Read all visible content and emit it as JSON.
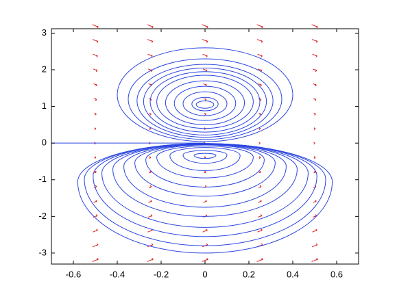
{
  "chart_data": {
    "type": "contour-quiver",
    "xlim": [
      -0.7,
      0.7
    ],
    "ylim": [
      -3.3,
      3.12
    ],
    "xticks": [
      -0.6,
      -0.4,
      -0.2,
      0,
      0.2,
      0.4,
      0.6
    ],
    "yticks": [
      -3,
      -2,
      -1,
      0,
      1,
      2,
      3
    ],
    "series": [
      {
        "color": "#2a45e0",
        "contours": [
          {
            "top": 1.15,
            "bottom": 0.95,
            "half_width": 0.04
          },
          {
            "top": 1.25,
            "bottom": 0.88,
            "half_width": 0.06
          },
          {
            "top": 1.4,
            "bottom": 0.75,
            "half_width": 0.1
          },
          {
            "top": 1.55,
            "bottom": 0.62,
            "half_width": 0.14
          },
          {
            "top": 1.7,
            "bottom": 0.5,
            "half_width": 0.18
          },
          {
            "top": 1.85,
            "bottom": 0.4,
            "half_width": 0.22
          },
          {
            "top": 1.95,
            "bottom": 0.3,
            "half_width": 0.25
          },
          {
            "top": 2.05,
            "bottom": 0.22,
            "half_width": 0.28
          },
          {
            "top": 2.15,
            "bottom": 0.16,
            "half_width": 0.31
          },
          {
            "top": 2.3,
            "bottom": 0.1,
            "half_width": 0.35
          },
          {
            "top": 2.6,
            "bottom": 0.04,
            "half_width": 0.4
          }
        ]
      },
      {
        "color": "#2a45e0",
        "contours": [
          {
            "top": -0.28,
            "bottom": -0.42,
            "half_width": 0.05
          },
          {
            "top": -0.2,
            "bottom": -0.55,
            "half_width": 0.1
          },
          {
            "top": -0.12,
            "bottom": -0.75,
            "half_width": 0.16
          },
          {
            "top": -0.08,
            "bottom": -0.95,
            "half_width": 0.22
          },
          {
            "top": -0.05,
            "bottom": -1.2,
            "half_width": 0.27
          },
          {
            "top": -0.04,
            "bottom": -1.45,
            "half_width": 0.32
          },
          {
            "top": -0.03,
            "bottom": -1.75,
            "half_width": 0.37
          },
          {
            "top": -0.02,
            "bottom": -2.0,
            "half_width": 0.42
          },
          {
            "top": -0.02,
            "bottom": -2.3,
            "half_width": 0.47
          },
          {
            "top": -0.01,
            "bottom": -2.55,
            "half_width": 0.51
          },
          {
            "top": -0.01,
            "bottom": -2.8,
            "half_width": 0.55
          },
          {
            "top": -0.01,
            "bottom": -3.0,
            "half_width": 0.58
          }
        ]
      }
    ],
    "line": {
      "color": "#2a45e0",
      "x": [
        -0.7,
        0
      ],
      "y": [
        0,
        0
      ]
    },
    "quiver": {
      "color": "#e02020",
      "x": [
        -0.5,
        -0.25,
        0,
        0.25,
        0.5
      ],
      "y": [
        -3.2,
        -2.8,
        -2.4,
        -2.0,
        -1.6,
        -1.2,
        -0.8,
        -0.4,
        0,
        0.4,
        0.8,
        1.2,
        1.6,
        2.0,
        2.4,
        2.8,
        3.2
      ]
    }
  }
}
